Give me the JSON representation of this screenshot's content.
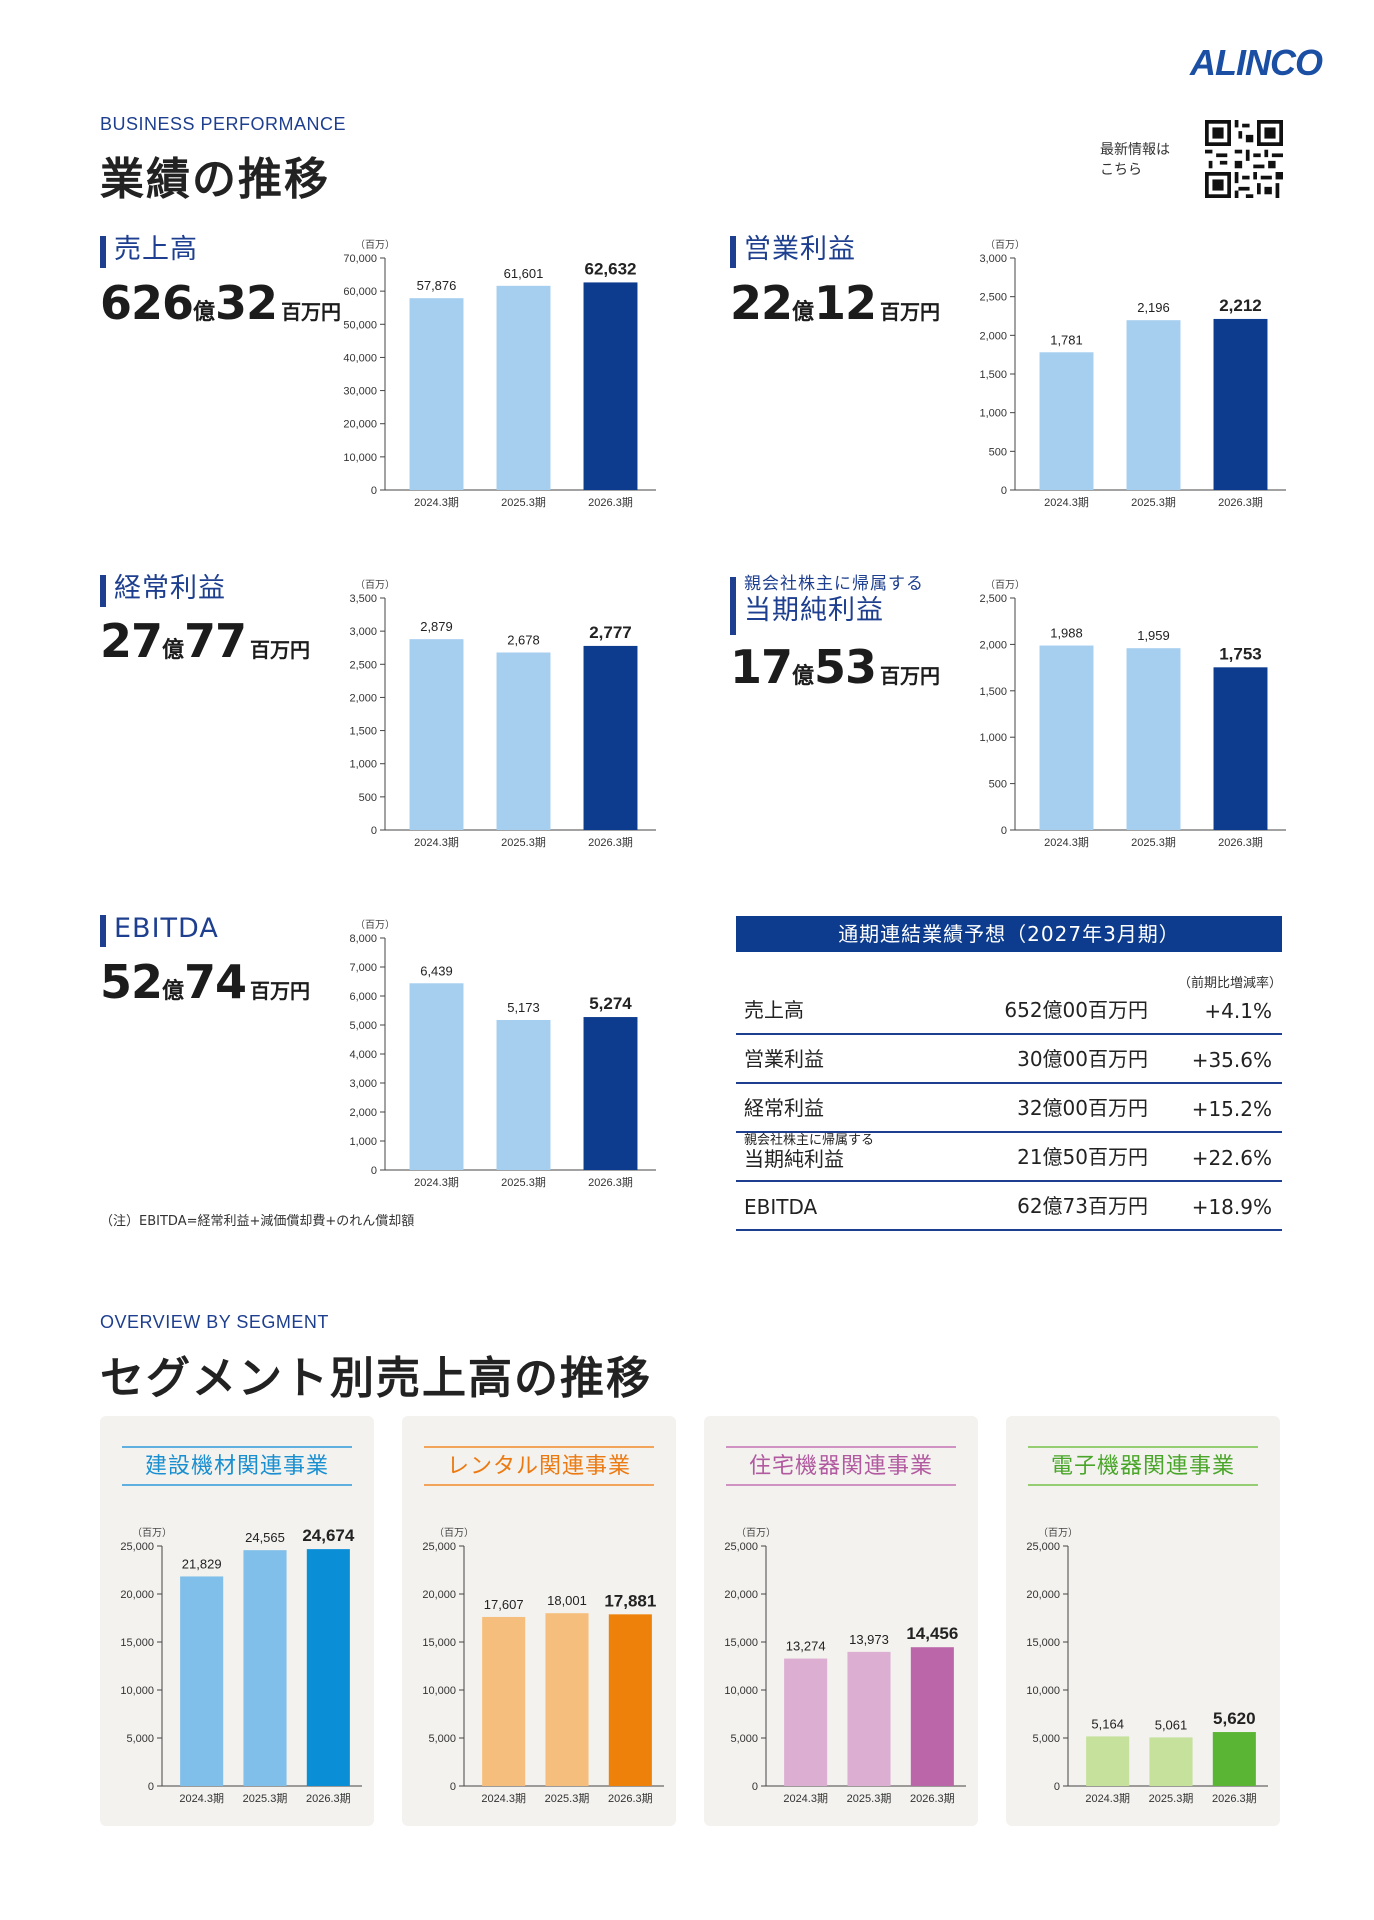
{
  "brand": {
    "logo": "ALINCO"
  },
  "header": {
    "eyebrow": "BUSINESS PERFORMANCE",
    "title": "業績の推移",
    "qr_label": "最新情報は\nこちら"
  },
  "kpis": [
    {
      "label_small": "",
      "label": "売上高",
      "num1": "626",
      "unit1": "億",
      "num2": "32",
      "unit2": "百万円"
    },
    {
      "label_small": "",
      "label": "営業利益",
      "num1": "22",
      "unit1": "億",
      "num2": "12",
      "unit2": "百万円"
    },
    {
      "label_small": "",
      "label": "経常利益",
      "num1": "27",
      "unit1": "億",
      "num2": "77",
      "unit2": "百万円"
    },
    {
      "label_small": "親会社株主に帰属する",
      "label": "当期純利益",
      "num1": "17",
      "unit1": "億",
      "num2": "53",
      "unit2": "百万円"
    },
    {
      "label_small": "",
      "label": "EBITDA",
      "num1": "52",
      "unit1": "億",
      "num2": "74",
      "unit2": "百万円"
    }
  ],
  "note": "（注）EBITDA=経常利益+減価償却費+のれん償却額",
  "forecast": {
    "title": "通期連結業績予想（2027年3月期）",
    "sub": "（前期比増減率）",
    "rows": [
      {
        "label_small": "",
        "label": "売上高",
        "value": "652億00百万円",
        "pct": "+4.1%"
      },
      {
        "label_small": "",
        "label": "営業利益",
        "value": "30億00百万円",
        "pct": "+35.6%"
      },
      {
        "label_small": "",
        "label": "経常利益",
        "value": "32億00百万円",
        "pct": "+15.2%"
      },
      {
        "label_small": "親会社株主に帰属する",
        "label": "当期純利益",
        "value": "21億50百万円",
        "pct": "+22.6%"
      },
      {
        "label_small": "",
        "label": "EBITDA",
        "value": "62億73百万円",
        "pct": "+18.9%"
      }
    ]
  },
  "segment_header": {
    "eyebrow": "OVERVIEW BY SEGMENT",
    "title": "セグメント別売上高の推移"
  },
  "colors": {
    "navy": "#0d3c8e",
    "light_blue": "#a6cfef",
    "seg_blue_light": "#7fbfe9",
    "seg_blue": "#0a8ed6",
    "seg_orange_light": "#f6be7c",
    "seg_orange": "#ee8109",
    "seg_purple_light": "#dbaed2",
    "seg_purple": "#bb66a8",
    "seg_green_light": "#c5e19b",
    "seg_green": "#5bb534"
  },
  "chart_data": [
    {
      "id": "sales",
      "type": "bar",
      "unit": "（百万）",
      "categories": [
        "2024.3期",
        "2025.3期",
        "2026.3期"
      ],
      "values": [
        57876,
        61601,
        62632
      ],
      "value_labels": [
        "57,876",
        "61,601",
        "62,632"
      ],
      "ylim": [
        0,
        70000
      ],
      "yticks": [
        "0",
        "10,000",
        "20,000",
        "30,000",
        "40,000",
        "50,000",
        "60,000",
        "70,000"
      ]
    },
    {
      "id": "operating",
      "type": "bar",
      "unit": "（百万）",
      "categories": [
        "2024.3期",
        "2025.3期",
        "2026.3期"
      ],
      "values": [
        1781,
        2196,
        2212
      ],
      "value_labels": [
        "1,781",
        "2,196",
        "2,212"
      ],
      "ylim": [
        0,
        3000
      ],
      "yticks": [
        "0",
        "500",
        "1,000",
        "1,500",
        "2,000",
        "2,500",
        "3,000"
      ]
    },
    {
      "id": "ordinary",
      "type": "bar",
      "unit": "（百万）",
      "categories": [
        "2024.3期",
        "2025.3期",
        "2026.3期"
      ],
      "values": [
        2879,
        2678,
        2777
      ],
      "value_labels": [
        "2,879",
        "2,678",
        "2,777"
      ],
      "ylim": [
        0,
        3500
      ],
      "yticks": [
        "0",
        "500",
        "1,000",
        "1,500",
        "2,000",
        "2,500",
        "3,000",
        "3,500"
      ]
    },
    {
      "id": "net",
      "type": "bar",
      "unit": "（百万）",
      "categories": [
        "2024.3期",
        "2025.3期",
        "2026.3期"
      ],
      "values": [
        1988,
        1959,
        1753
      ],
      "value_labels": [
        "1,988",
        "1,959",
        "1,753"
      ],
      "ylim": [
        0,
        2500
      ],
      "yticks": [
        "0",
        "500",
        "1,000",
        "1,500",
        "2,000",
        "2,500"
      ]
    },
    {
      "id": "ebitda",
      "type": "bar",
      "unit": "（百万）",
      "categories": [
        "2024.3期",
        "2025.3期",
        "2026.3期"
      ],
      "values": [
        6439,
        5173,
        5274
      ],
      "value_labels": [
        "6,439",
        "5,173",
        "5,274"
      ],
      "ylim": [
        0,
        8000
      ],
      "yticks": [
        "0",
        "1,000",
        "2,000",
        "3,000",
        "4,000",
        "5,000",
        "6,000",
        "7,000",
        "8,000"
      ]
    },
    {
      "id": "seg1",
      "title": "建設機材関連事業",
      "type": "bar",
      "unit": "（百万）",
      "categories": [
        "2024.3期",
        "2025.3期",
        "2026.3期"
      ],
      "values": [
        21829,
        24565,
        24674
      ],
      "value_labels": [
        "21,829",
        "24,565",
        "24,674"
      ],
      "ylim": [
        0,
        25000
      ],
      "yticks": [
        "0",
        "5,000",
        "10,000",
        "15,000",
        "20,000",
        "25,000"
      ]
    },
    {
      "id": "seg2",
      "title": "レンタル関連事業",
      "type": "bar",
      "unit": "（百万）",
      "categories": [
        "2024.3期",
        "2025.3期",
        "2026.3期"
      ],
      "values": [
        17607,
        18001,
        17881
      ],
      "value_labels": [
        "17,607",
        "18,001",
        "17,881"
      ],
      "ylim": [
        0,
        25000
      ],
      "yticks": [
        "0",
        "5,000",
        "10,000",
        "15,000",
        "20,000",
        "25,000"
      ]
    },
    {
      "id": "seg3",
      "title": "住宅機器関連事業",
      "type": "bar",
      "unit": "（百万）",
      "categories": [
        "2024.3期",
        "2025.3期",
        "2026.3期"
      ],
      "values": [
        13274,
        13973,
        14456
      ],
      "value_labels": [
        "13,274",
        "13,973",
        "14,456"
      ],
      "ylim": [
        0,
        25000
      ],
      "yticks": [
        "0",
        "5,000",
        "10,000",
        "15,000",
        "20,000",
        "25,000"
      ]
    },
    {
      "id": "seg4",
      "title": "電子機器関連事業",
      "type": "bar",
      "unit": "（百万）",
      "categories": [
        "2024.3期",
        "2025.3期",
        "2026.3期"
      ],
      "values": [
        5164,
        5061,
        5620
      ],
      "value_labels": [
        "5,164",
        "5,061",
        "5,620"
      ],
      "ylim": [
        0,
        25000
      ],
      "yticks": [
        "0",
        "5,000",
        "10,000",
        "15,000",
        "20,000",
        "25,000"
      ]
    }
  ]
}
